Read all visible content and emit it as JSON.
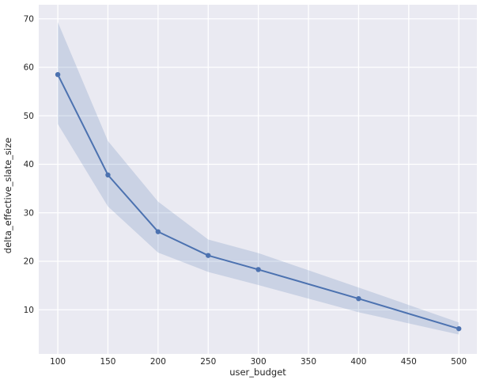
{
  "figure": {
    "background": "#ffffff"
  },
  "chart_data": {
    "type": "line",
    "title": "",
    "xlabel": "user_budget",
    "ylabel": "delta_effective_slate_size",
    "x": [
      100,
      150,
      200,
      250,
      300,
      400,
      500
    ],
    "series": [
      {
        "name": "delta_effective_slate_size",
        "values": [
          58.5,
          37.8,
          26.1,
          21.2,
          18.3,
          12.3,
          6.1
        ],
        "ci_upper": [
          69.3,
          44.8,
          32.3,
          24.5,
          21.7,
          14.6,
          7.4
        ],
        "ci_lower": [
          48.3,
          31.3,
          21.8,
          17.8,
          15.1,
          9.5,
          4.9
        ]
      }
    ],
    "xticks": [
      100,
      150,
      200,
      250,
      300,
      350,
      400,
      450,
      500
    ],
    "yticks": [
      10,
      20,
      30,
      40,
      50,
      60,
      70
    ],
    "xlim": [
      81,
      518
    ],
    "ylim": [
      0.9,
      72.9
    ],
    "grid": true,
    "legend": false,
    "style": {
      "plot_bg": "#eaeaf2",
      "grid_color": "#ffffff",
      "line_color": "#4c72b0",
      "band_color": "rgba(76,114,176,0.2)",
      "text_color": "#262626",
      "marker": "circle",
      "line_width": 2,
      "marker_radius": 3.2
    }
  }
}
